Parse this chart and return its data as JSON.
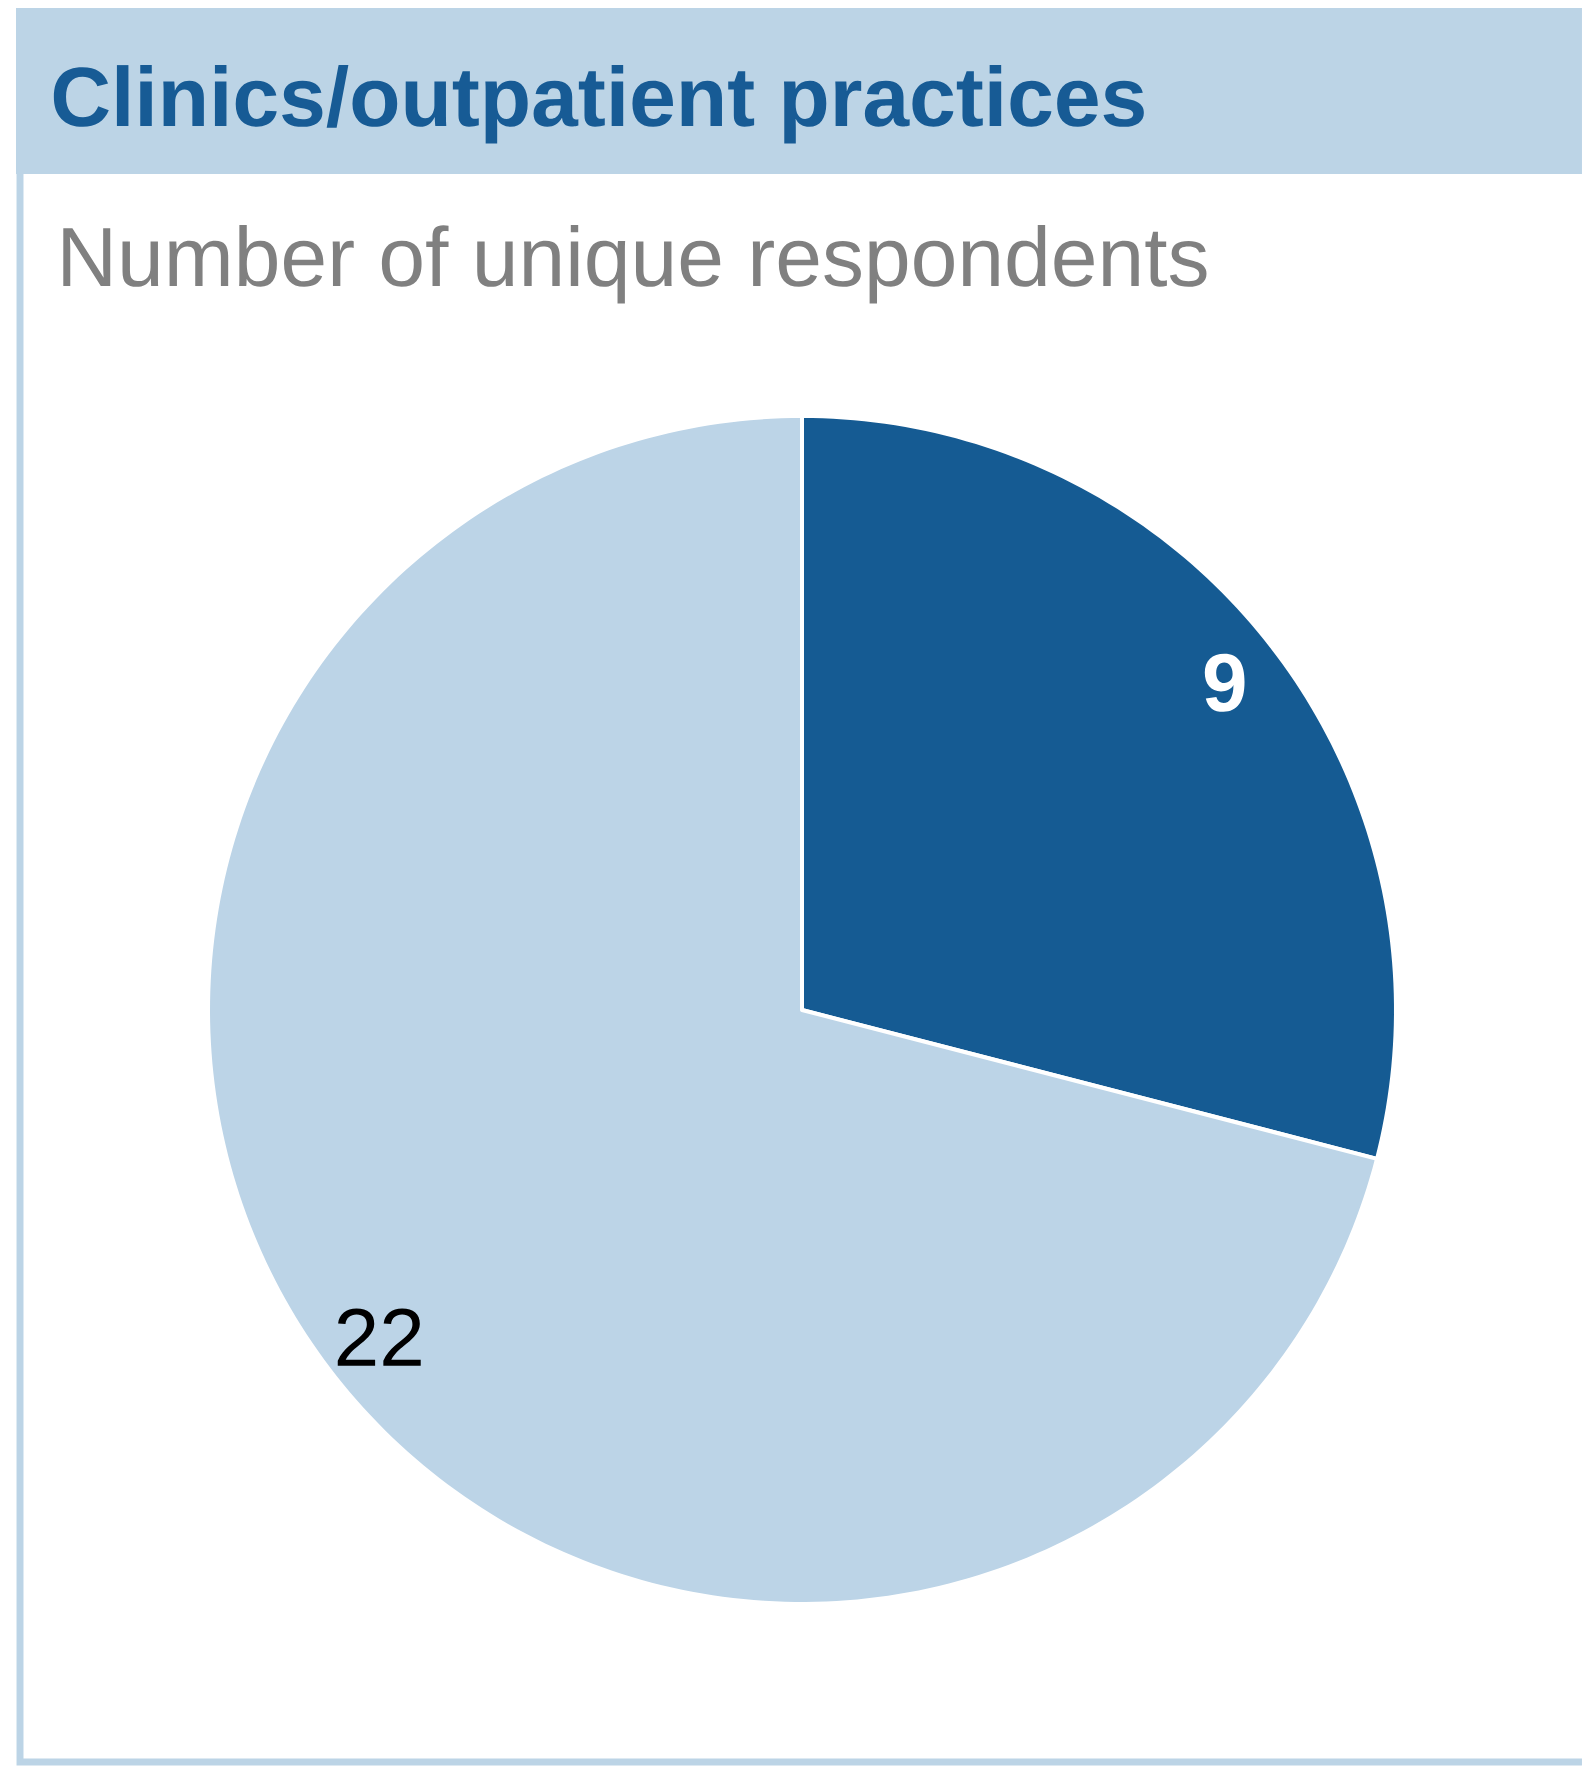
{
  "chart_data": {
    "type": "pie",
    "title": "Clinics/outpatient practices",
    "subtitle": "Number of unique respondents",
    "categories": [
      null,
      null
    ],
    "values": [
      9,
      22
    ],
    "colors": [
      "#155b93",
      "#bcd4e7"
    ],
    "data_labels": true
  }
}
